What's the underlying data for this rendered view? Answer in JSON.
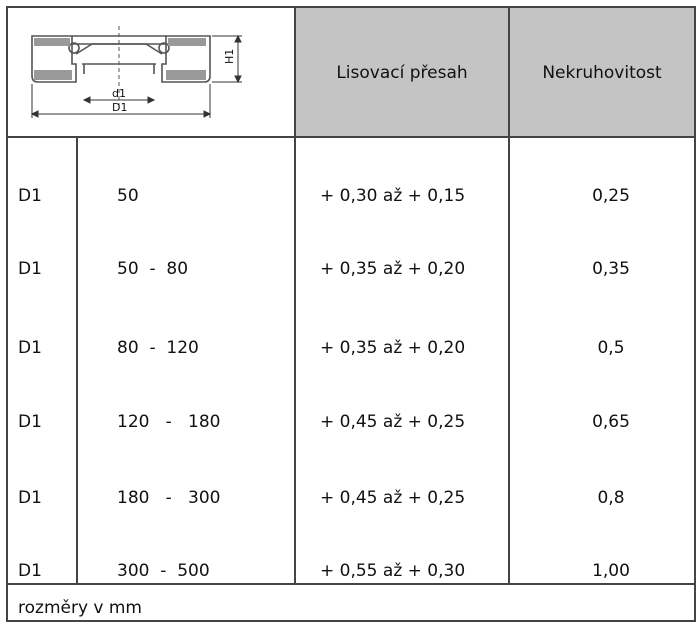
{
  "header": {
    "diagram_labels": {
      "small_diameter": "d1",
      "large_diameter": "D1",
      "height": "H1"
    },
    "col_press_fit": "Lisovací přesah",
    "col_ovality": "Nekruhovitost"
  },
  "rows": [
    {
      "dim": "D1",
      "range": "50",
      "press_fit": "+ 0,30 až + 0,15",
      "ovality": "0,25"
    },
    {
      "dim": "D1",
      "range": "50  -  80",
      "press_fit": "+ 0,35 až + 0,20",
      "ovality": "0,35"
    },
    {
      "dim": "D1",
      "range": "80  -  120",
      "press_fit": "+ 0,35 až + 0,20",
      "ovality": "0,5"
    },
    {
      "dim": "D1",
      "range": "120   -   180",
      "press_fit": "+ 0,45 až + 0,25",
      "ovality": "0,65"
    },
    {
      "dim": "D1",
      "range": "180   -   300",
      "press_fit": "+ 0,45 až + 0,25",
      "ovality": "0,8"
    },
    {
      "dim": "D1",
      "range": "300  -  500",
      "press_fit": "+ 0,55 až + 0,30",
      "ovality": "1,00"
    }
  ],
  "footer": "rozměry v mm"
}
